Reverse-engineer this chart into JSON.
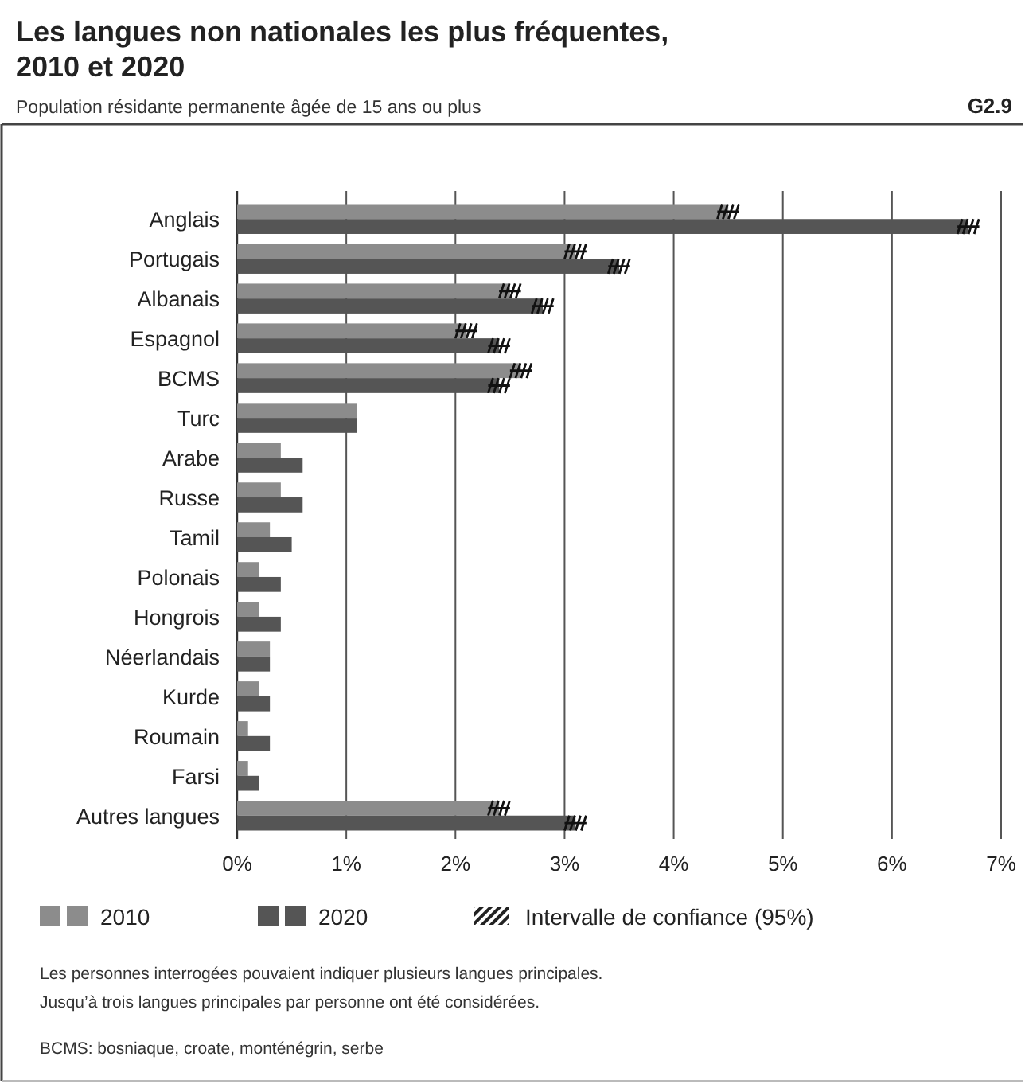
{
  "chart_data": {
    "type": "bar",
    "orientation": "horizontal",
    "title": "Les langues non nationales les plus fréquentes,\n2010 et 2020",
    "subtitle": "Population résidante permanente âgée de 15 ans ou plus",
    "categories": [
      "Anglais",
      "Portugais",
      "Albanais",
      "Espagnol",
      "BCMS",
      "Turc",
      "Arabe",
      "Russe",
      "Tamil",
      "Polonais",
      "Hongrois",
      "Néerlandais",
      "Kurde",
      "Roumain",
      "Farsi",
      "Autres langues"
    ],
    "series": [
      {
        "name": "2010",
        "color": "#8c8c8c",
        "values": [
          4.5,
          3.1,
          2.5,
          2.1,
          2.6,
          1.1,
          0.4,
          0.4,
          0.3,
          0.2,
          0.2,
          0.3,
          0.2,
          0.1,
          0.1,
          2.4
        ],
        "errors": [
          0.1,
          0.1,
          0.1,
          0.1,
          0.1,
          null,
          null,
          null,
          null,
          null,
          null,
          null,
          null,
          null,
          null,
          0.1
        ]
      },
      {
        "name": "2020",
        "color": "#555555",
        "values": [
          6.7,
          3.5,
          2.8,
          2.4,
          2.4,
          1.1,
          0.6,
          0.6,
          0.5,
          0.4,
          0.4,
          0.3,
          0.3,
          0.3,
          0.2,
          3.1
        ],
        "errors": [
          0.1,
          0.1,
          0.1,
          0.1,
          0.1,
          null,
          null,
          null,
          null,
          null,
          null,
          null,
          null,
          null,
          null,
          0.1
        ]
      }
    ],
    "xlim": [
      0,
      7
    ],
    "xticks": [
      {
        "value": 0,
        "label": "0%"
      },
      {
        "value": 1,
        "label": "1%"
      },
      {
        "value": 2,
        "label": "2%"
      },
      {
        "value": 3,
        "label": "3%"
      },
      {
        "value": 4,
        "label": "4%"
      },
      {
        "value": 5,
        "label": "5%"
      },
      {
        "value": 6,
        "label": "6%"
      },
      {
        "value": 7,
        "label": "7%"
      }
    ],
    "grid": "x",
    "legend": "bottom",
    "annotations": [
      "G2.9",
      "Intervalle de confiance (95%)",
      "Les personnes interrogées pouvaient indiquer plusieurs langues principales.\nJusqu’à trois langues principales par personne ont été considérées.",
      "BCMS: bosniaque, croate, monténégrin, serbe"
    ]
  }
}
